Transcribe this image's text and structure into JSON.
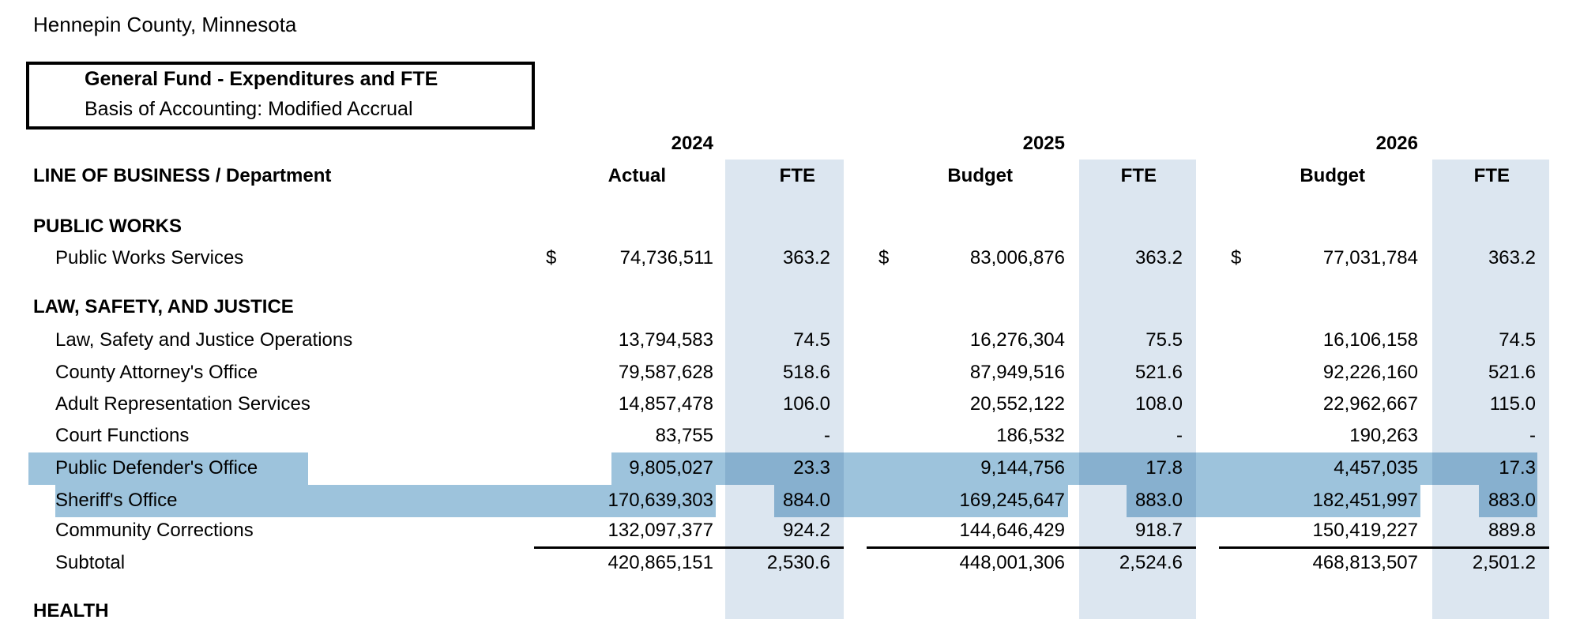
{
  "page_title": "Hennepin County, Minnesota",
  "box": {
    "title": "General Fund - Expenditures and FTE",
    "subtitle": "Basis of Accounting: Modified Accrual"
  },
  "years": [
    "2024",
    "2025",
    "2026"
  ],
  "columns": {
    "label": "LINE OF BUSINESS / Department",
    "c1": "Actual",
    "c2": "Budget",
    "c3": "Budget",
    "fte": "FTE"
  },
  "colors": {
    "fte_column": "#dce6f0",
    "highlight": "#9dc3dc"
  },
  "sections": {
    "public_works": {
      "title": "PUBLIC WORKS",
      "rows": [
        {
          "name": "Public Works Services",
          "currency": "$",
          "v2024": "74,736,511",
          "f2024": "363.2",
          "v2025": "83,006,876",
          "f2025": "363.2",
          "v2026": "77,031,784",
          "f2026": "363.2"
        }
      ]
    },
    "law": {
      "title": "LAW, SAFETY, AND JUSTICE",
      "rows": [
        {
          "name": "Law, Safety and Justice Operations",
          "v2024": "13,794,583",
          "f2024": "74.5",
          "v2025": "16,276,304",
          "f2025": "75.5",
          "v2026": "16,106,158",
          "f2026": "74.5"
        },
        {
          "name": "County Attorney's Office",
          "v2024": "79,587,628",
          "f2024": "518.6",
          "v2025": "87,949,516",
          "f2025": "521.6",
          "v2026": "92,226,160",
          "f2026": "521.6"
        },
        {
          "name": "Adult Representation Services",
          "v2024": "14,857,478",
          "f2024": "106.0",
          "v2025": "20,552,122",
          "f2025": "108.0",
          "v2026": "22,962,667",
          "f2026": "115.0"
        },
        {
          "name": "Court Functions",
          "v2024": "83,755",
          "f2024": "-",
          "v2025": "186,532",
          "f2025": "-",
          "v2026": "190,263",
          "f2026": "-"
        },
        {
          "name": "Public Defender's Office",
          "v2024": "9,805,027",
          "f2024": "23.3",
          "v2025": "9,144,756",
          "f2025": "17.8",
          "v2026": "4,457,035",
          "f2026": "17.3"
        },
        {
          "name": "Sheriff's Office",
          "v2024": "170,639,303",
          "f2024": "884.0",
          "v2025": "169,245,647",
          "f2025": "883.0",
          "v2026": "182,451,997",
          "f2026": "883.0"
        },
        {
          "name": "Community Corrections",
          "v2024": "132,097,377",
          "f2024": "924.2",
          "v2025": "144,646,429",
          "f2025": "918.7",
          "v2026": "150,419,227",
          "f2026": "889.8"
        },
        {
          "name": "Subtotal",
          "v2024": "420,865,151",
          "f2024": "2,530.6",
          "v2025": "448,001,306",
          "f2025": "2,524.6",
          "v2026": "468,813,507",
          "f2026": "2,501.2"
        }
      ]
    },
    "health": {
      "title": "HEALTH"
    }
  }
}
